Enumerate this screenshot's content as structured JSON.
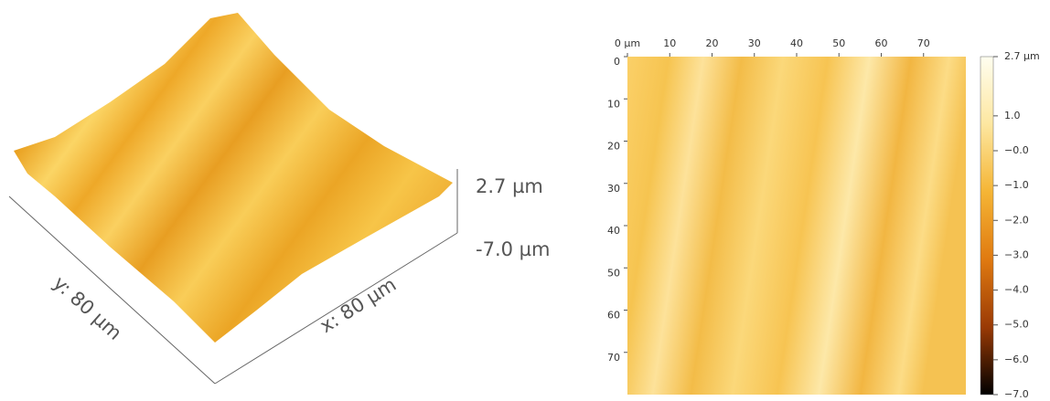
{
  "surface_3d": {
    "z_max_label": "2.7 µm",
    "z_min_label": "-7.0 µm",
    "y_label": "y: 80 µm",
    "x_label": "x: 80 µm"
  },
  "height_map": {
    "xlim": [
      0,
      80
    ],
    "ylim": [
      0,
      80
    ],
    "xticks": [
      {
        "value": 0,
        "label": "0 µm"
      },
      10,
      20,
      30,
      40,
      50,
      60,
      70
    ],
    "yticks": [
      0,
      10,
      20,
      30,
      40,
      50,
      60,
      70
    ],
    "colorbar": {
      "lim": [
        -7.0,
        2.7
      ],
      "ticks": [
        {
          "value": 2.7,
          "label": "2.7 µm"
        },
        {
          "value": 1.0,
          "label": "1.0"
        },
        {
          "value": 0,
          "label": "−0.0"
        },
        {
          "value": -1.0,
          "label": "−1.0"
        },
        {
          "value": -2.0,
          "label": "−2.0"
        },
        {
          "value": -3.0,
          "label": "−3.0"
        },
        {
          "value": -4.0,
          "label": "−4.0"
        },
        {
          "value": -5.0,
          "label": "−5.0"
        },
        {
          "value": -6.0,
          "label": "−6.0"
        },
        {
          "value": -7.0,
          "label": "−7.0"
        }
      ]
    }
  }
}
